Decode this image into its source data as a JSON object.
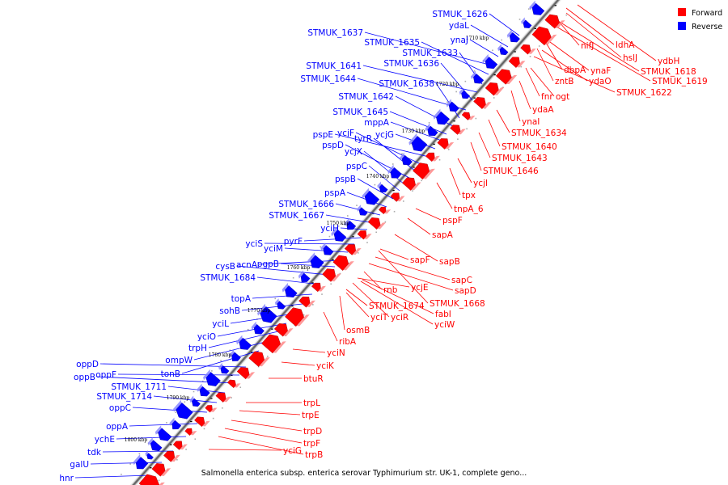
{
  "caption": "Salmonella enterica subsp. enterica serovar Typhimurium str. UK-1, complete geno...",
  "legend": [
    {
      "label": "Forward",
      "color": "#ff0000"
    },
    {
      "label": "Reverse",
      "color": "#0000ff"
    }
  ],
  "colors": {
    "forward": "#ff0000",
    "reverse": "#0000ff",
    "backbone": "#888888"
  },
  "ticks": [
    "1710 kbp",
    "1720 kbp",
    "1730 kbp",
    "1740 kbp",
    "1750 kbp",
    "1760 kbp",
    "1770 kbp",
    "1780 kbp",
    "1790 kbp",
    "1800 kbp"
  ],
  "reverse_genes": [
    "STMUK_1626",
    "ydaL",
    "ynaJ",
    "STMUK_1637",
    "STMUK_1635",
    "STMUK_1633",
    "STMUK_1641",
    "STMUK_1636",
    "STMUK_1644",
    "STMUK_1638",
    "STMUK_1642",
    "STMUK_1645",
    "mppA",
    "ycjG",
    "pspE",
    "ycjF",
    "tyrR",
    "pspD",
    "ycjX",
    "pspC",
    "pspB",
    "pspA",
    "STMUK_1666",
    "STMUK_1667",
    "yciH",
    "pyrF",
    "yciS",
    "yciM",
    "acnA",
    "pgpB",
    "cysB",
    "STMUK_1684",
    "topA",
    "sohB",
    "yciL",
    "yciO",
    "trpH",
    "ompW",
    "tonB",
    "oppD",
    "oppF",
    "oppB",
    "STMUK_1711",
    "STMUK_1714",
    "oppC",
    "oppA",
    "ychE",
    "tdk",
    "galU",
    "hnr"
  ],
  "forward_genes": [
    "ydbH",
    "ldhA",
    "hslJ",
    "nifJ",
    "STMUK_1618",
    "STMUK_1619",
    "dbpA",
    "ynaF",
    "zntB",
    "ydaO",
    "STMUK_1622",
    "fnr",
    "ogt",
    "ydaA",
    "ynaI",
    "STMUK_1634",
    "STMUK_1640",
    "STMUK_1643",
    "STMUK_1646",
    "ycjI",
    "tpx",
    "tnpA_6",
    "pspF",
    "sapA",
    "sapF",
    "sapB",
    "sapC",
    "sapD",
    "ycjE",
    "rnb",
    "STMUK_1668",
    "STMUK_1674",
    "fabI",
    "yciT",
    "yciR",
    "yciW",
    "osmB",
    "ribA",
    "yciN",
    "yciK",
    "btuR",
    "trpL",
    "trpE",
    "trpD",
    "trpF",
    "trpB",
    "yciG"
  ]
}
